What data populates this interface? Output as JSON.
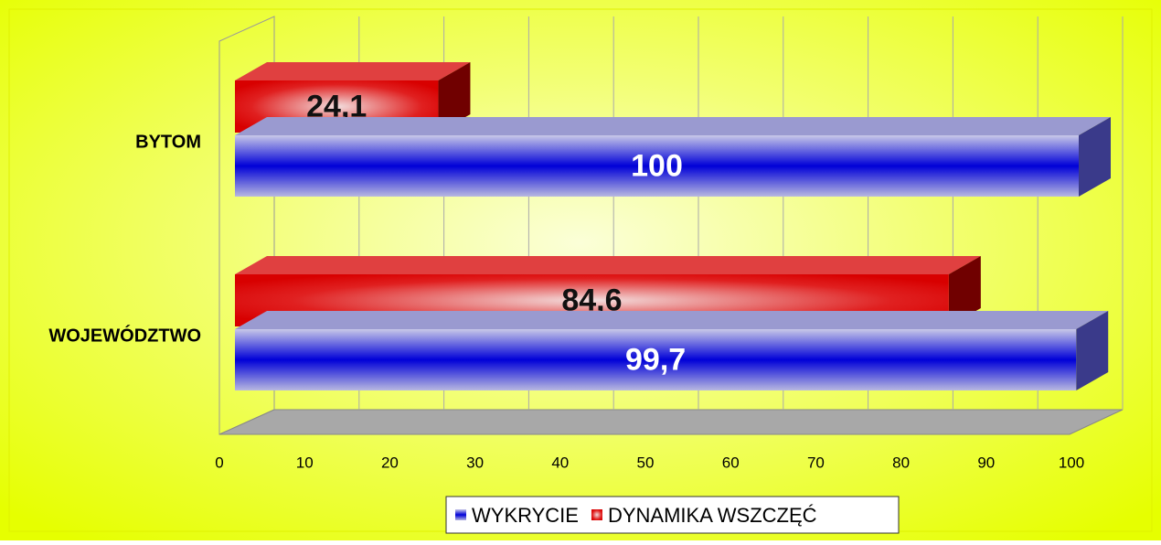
{
  "chart_data": {
    "type": "bar3d_horizontal",
    "categories": [
      "BYTOM",
      "WOJEWÓDZTWO"
    ],
    "series": [
      {
        "name": "WYKRYCIE",
        "color": "#0000d0",
        "values": [
          100,
          99.7
        ],
        "value_labels": [
          "100",
          "99,7"
        ]
      },
      {
        "name": "DYNAMIKA WSZCZĘĆ",
        "color": "#dd0000",
        "values": [
          24.1,
          84.6
        ],
        "value_labels": [
          "24,1",
          "84,6"
        ]
      }
    ],
    "xlim": [
      0,
      100
    ],
    "xticks": [
      0,
      10,
      20,
      30,
      40,
      50,
      60,
      70,
      80,
      90,
      100
    ],
    "grid": true,
    "legend": "bottom"
  }
}
